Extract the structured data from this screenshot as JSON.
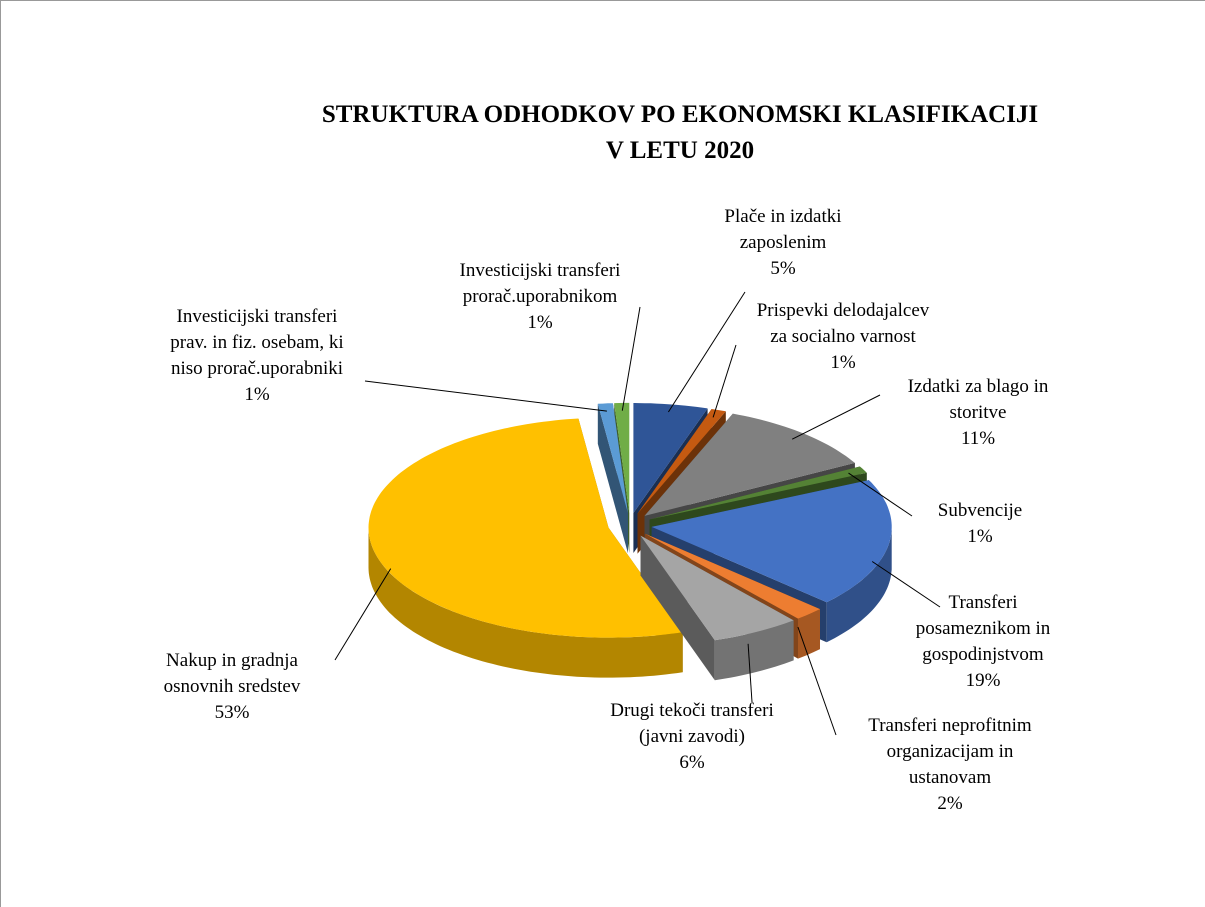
{
  "chart_data": {
    "type": "pie",
    "title": [
      "STRUKTURA ODHODKOV PO EKONOMSKI KLASIFIKACIJI",
      "V LETU 2020"
    ],
    "categories": [
      "Plače in izdatki\nzaposlenim",
      "Prispevki delodajalcev\nza socialno varnost",
      "Izdatki za blago in\nstoritve",
      "Subvencije",
      "Transferi\nposameznikom in\ngospodinjstvom",
      "Transferi neprofitnim\norganizacijam  in\nustanovam",
      "Drugi tekoči transferi\n(javni zavodi)",
      "Nakup in gradnja\nosnovnih sredstev",
      "Investicijski  transferi\nprav. in fiz. osebam, ki\nniso prorač.uporabniki",
      "Investicijski  transferi\nprorač.uporabnikom"
    ],
    "values": [
      5,
      1,
      11,
      1,
      19,
      2,
      6,
      53,
      1,
      1
    ],
    "value_labels": [
      "5%",
      "1%",
      "11%",
      "1%",
      "19%",
      "2%",
      "6%",
      "53%",
      "1%",
      "1%"
    ],
    "colors": [
      "#2f5597",
      "#c55a11",
      "#808080",
      "#548235",
      "#4472c4",
      "#ed7d31",
      "#a5a5a5",
      "#ffc000",
      "#5b9bd5",
      "#70ad47"
    ]
  }
}
